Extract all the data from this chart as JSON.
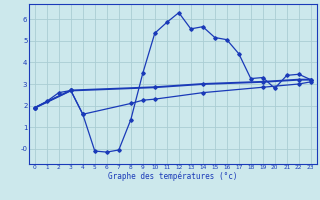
{
  "title": "Graphe des températures (°c)",
  "bg_color": "#cce8ec",
  "grid_color": "#aacdd4",
  "line_color": "#1a3ab8",
  "xlim": [
    -0.5,
    23.5
  ],
  "ylim": [
    -0.7,
    6.7
  ],
  "xticks": [
    0,
    1,
    2,
    3,
    4,
    5,
    6,
    7,
    8,
    9,
    10,
    11,
    12,
    13,
    14,
    15,
    16,
    17,
    18,
    19,
    20,
    21,
    22,
    23
  ],
  "yticks": [
    0,
    1,
    2,
    3,
    4,
    5,
    6
  ],
  "ytick_labels": [
    "-0",
    "1",
    "2",
    "3",
    "4",
    "5",
    "6"
  ],
  "curve1_x": [
    0,
    1,
    2,
    3,
    4,
    5,
    6,
    7,
    8,
    9,
    10,
    11,
    12,
    13,
    14,
    15,
    16,
    17,
    18,
    19,
    20,
    21,
    22,
    23
  ],
  "curve1_y": [
    1.9,
    2.2,
    2.6,
    2.7,
    1.6,
    -0.1,
    -0.15,
    -0.05,
    1.35,
    3.5,
    5.35,
    5.85,
    6.3,
    5.55,
    5.65,
    5.15,
    5.05,
    4.4,
    3.25,
    3.3,
    2.8,
    3.4,
    3.45,
    3.2
  ],
  "curve2_x": [
    0,
    3,
    10,
    14,
    19,
    22,
    23
  ],
  "curve2_y": [
    1.9,
    2.7,
    2.85,
    3.0,
    3.1,
    3.2,
    3.2
  ],
  "curve3_x": [
    0,
    3,
    4,
    8,
    9,
    10,
    14,
    19,
    22,
    23
  ],
  "curve3_y": [
    1.9,
    2.7,
    1.6,
    2.1,
    2.25,
    2.3,
    2.6,
    2.85,
    3.0,
    3.1
  ]
}
